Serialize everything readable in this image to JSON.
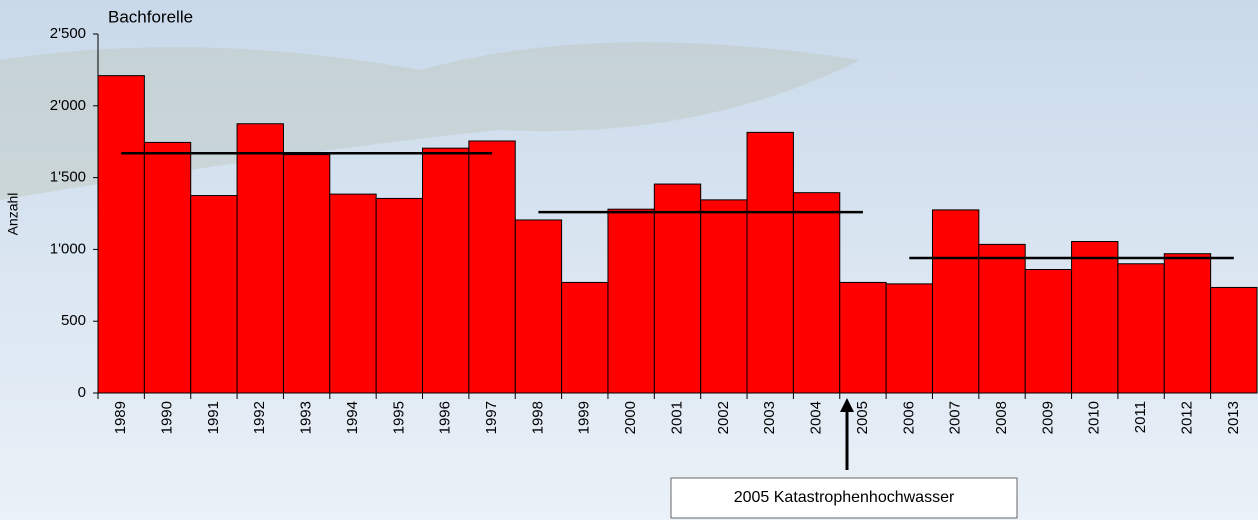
{
  "chart_data": {
    "type": "bar",
    "title": "Bachforelle",
    "y_label": "Anzahl",
    "categories": [
      "1989",
      "1990",
      "1991",
      "1992",
      "1993",
      "1994",
      "1995",
      "1996",
      "1997",
      "1998",
      "1999",
      "2000",
      "2001",
      "2002",
      "2003",
      "2004",
      "2005",
      "2006",
      "2007",
      "2008",
      "2009",
      "2010",
      "2011",
      "2012",
      "2013"
    ],
    "values": [
      2210,
      1745,
      1375,
      1875,
      1660,
      1385,
      1355,
      1705,
      1755,
      1205,
      770,
      1280,
      1455,
      1345,
      1815,
      1395,
      770,
      760,
      1275,
      1035,
      860,
      1055,
      900,
      970,
      735
    ],
    "color": "#ff0000",
    "line_series": [
      {
        "color": "#000000",
        "values": [
          1670,
          1670,
          1670,
          1670,
          1670,
          1670,
          1670,
          1670,
          1670,
          null,
          null,
          null,
          null,
          null,
          null,
          null,
          null,
          null,
          null,
          null,
          null,
          null,
          null,
          null,
          null
        ]
      },
      {
        "color": "#000000",
        "values": [
          null,
          null,
          null,
          null,
          null,
          null,
          null,
          null,
          null,
          1260,
          1260,
          1260,
          1260,
          1260,
          1260,
          1260,
          1260,
          null,
          null,
          null,
          null,
          null,
          null,
          null,
          null
        ]
      },
      {
        "color": "#000000",
        "values": [
          null,
          null,
          null,
          null,
          null,
          null,
          null,
          null,
          null,
          null,
          null,
          null,
          null,
          null,
          null,
          null,
          null,
          940,
          940,
          940,
          940,
          940,
          940,
          940,
          940
        ]
      }
    ],
    "ylim": [
      0,
      2500
    ],
    "yticks": [
      0,
      500,
      {
        "value": 1000,
        "label": "1'000"
      },
      {
        "value": 1500,
        "label": "1'500"
      },
      {
        "value": 2000,
        "label": "2'000"
      },
      {
        "value": 2500,
        "label": "2'500"
      }
    ],
    "annotation": "2005 Katastrophenhochwasser"
  }
}
